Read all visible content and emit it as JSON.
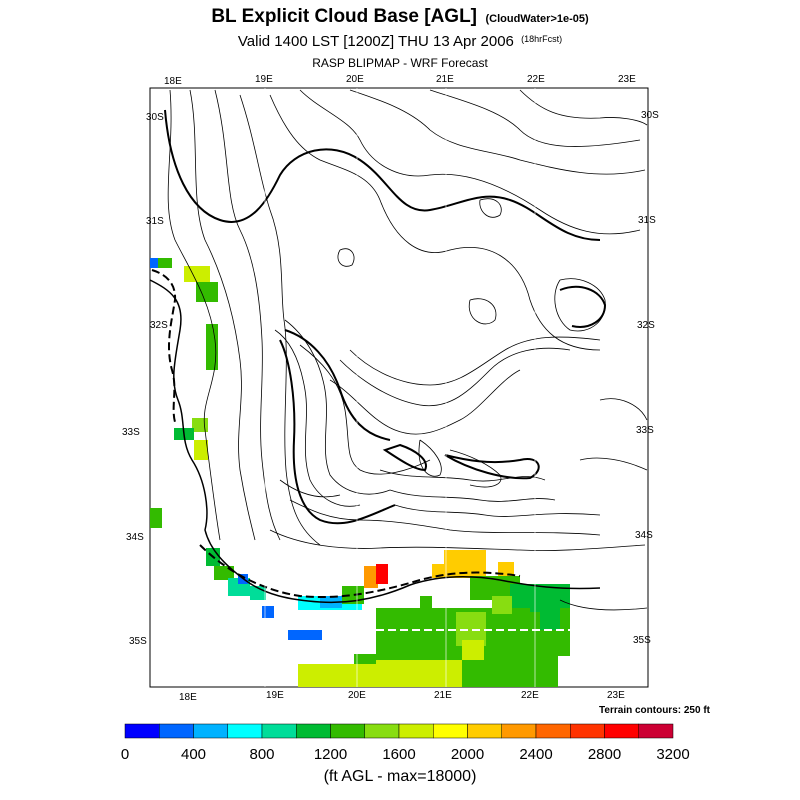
{
  "header": {
    "title": "BL Explicit Cloud Base [AGL]",
    "title_note": "(CloudWater>1e-05)",
    "valid_line": "Valid 1400 LST [1200Z] THU 13 Apr 2006",
    "valid_note": "(18hrFcst)",
    "model_line": "RASP BLIPMAP - WRF Forecast"
  },
  "map": {
    "lon_labels_top": [
      "18E",
      "19E",
      "20E",
      "21E",
      "22E",
      "23E"
    ],
    "lon_labels_bottom": [
      "18E",
      "19E",
      "20E",
      "21E",
      "22E",
      "23E"
    ],
    "lat_labels_left": [
      "30S",
      "31S",
      "32S",
      "33S",
      "34S",
      "35S"
    ],
    "lat_labels_right": [
      "30S",
      "31S",
      "32S",
      "33S",
      "34S",
      "35S"
    ],
    "terrain_note": "Terrain contours: 250 ft"
  },
  "colorbar": {
    "colors": [
      "#0000ff",
      "#0066ff",
      "#00b2ff",
      "#00ffff",
      "#00dd99",
      "#00bb33",
      "#33bb00",
      "#88dd11",
      "#ccee00",
      "#ffff00",
      "#ffcc00",
      "#ff9900",
      "#ff6600",
      "#ff3300",
      "#ff0000",
      "#cc0033"
    ],
    "tick_labels": [
      "0",
      "400",
      "800",
      "1200",
      "1600",
      "2000",
      "2400",
      "2800",
      "3200"
    ],
    "units_label": "(ft AGL - max=18000)"
  }
}
